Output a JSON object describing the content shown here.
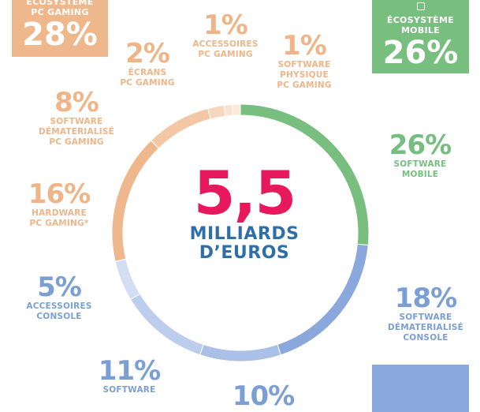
{
  "chart_data": {
    "type": "pie",
    "title": "5,5",
    "subtitle": "MILLIARDS D’EUROS",
    "slices": [
      {
        "label": "SOFTWARE MOBILE",
        "value": 26,
        "color": "#78bf7f"
      },
      {
        "label": "SOFTWARE DÉMATERIALISÉ CONSOLE",
        "value": 18,
        "color": "#8aa8db"
      },
      {
        "label": "",
        "value": 10,
        "color": "#aac0e6"
      },
      {
        "label": "SOFTWARE ...",
        "value": 11,
        "color": "#bccdee"
      },
      {
        "label": "ACCESSOIRES CONSOLE",
        "value": 5,
        "color": "#d4def3"
      },
      {
        "label": "HARDWARE PC GAMING*",
        "value": 16,
        "color": "#efb78c"
      },
      {
        "label": "SOFTWARE DÉMATERIALISÉ PC GAMING",
        "value": 8,
        "color": "#f3c7a3"
      },
      {
        "label": "ÉCRANS PC GAMING",
        "value": 2,
        "color": "#f6d7bd"
      },
      {
        "label": "ACCESSOIRES PC GAMING",
        "value": 1,
        "color": "#f9e3d1"
      },
      {
        "label": "SOFTWARE PHYSIQUE PC GAMING",
        "value": 1,
        "color": "#fbeadc"
      }
    ]
  },
  "boxes": {
    "pc": {
      "title_line1": "ÉCOSYSTÈME",
      "title_line2": "PC GAMING",
      "value": "28%",
      "color": "#efb78c"
    },
    "mobile": {
      "title_line1": "ÉCOSYSTÈME",
      "title_line2": "MOBILE",
      "value": "26%",
      "color": "#78bf7f",
      "icon": "phone-icon"
    },
    "console_color": "#8aa8db"
  },
  "labels": {
    "pc_accessoires": {
      "pct": "1%",
      "l1": "ACCESSOIRES",
      "l2": "PC GAMING"
    },
    "pc_ecrans": {
      "pct": "2%",
      "l1": "ÉCRANS",
      "l2": "PC GAMING"
    },
    "pc_software_physique": {
      "pct": "1%",
      "l1": "SOFTWARE",
      "l2": "PHYSIQUE",
      "l3": "PC GAMING"
    },
    "pc_software_demat": {
      "pct": "8%",
      "l1": "SOFTWARE",
      "l2": "DÉMATERIALISÉ",
      "l3": "PC GAMING"
    },
    "pc_hardware": {
      "pct": "16%",
      "l1": "HARDWARE",
      "l2": "PC GAMING*"
    },
    "console_accessoires": {
      "pct": "5%",
      "l1": "ACCESSOIRES",
      "l2": "CONSOLE"
    },
    "console_software": {
      "pct": "11%",
      "l1": "SOFTWARE"
    },
    "console_bottom": {
      "pct": "10%"
    },
    "mobile_software": {
      "pct": "26%",
      "l1": "SOFTWARE",
      "l2": "MOBILE"
    },
    "console_demat": {
      "pct": "18%",
      "l1": "SOFTWARE",
      "l2": "DÉMATERIALISÉ",
      "l3": "CONSOLE"
    }
  },
  "center": {
    "big": "5,5",
    "line1": "MILLIARDS",
    "line2": "D’EUROS"
  }
}
